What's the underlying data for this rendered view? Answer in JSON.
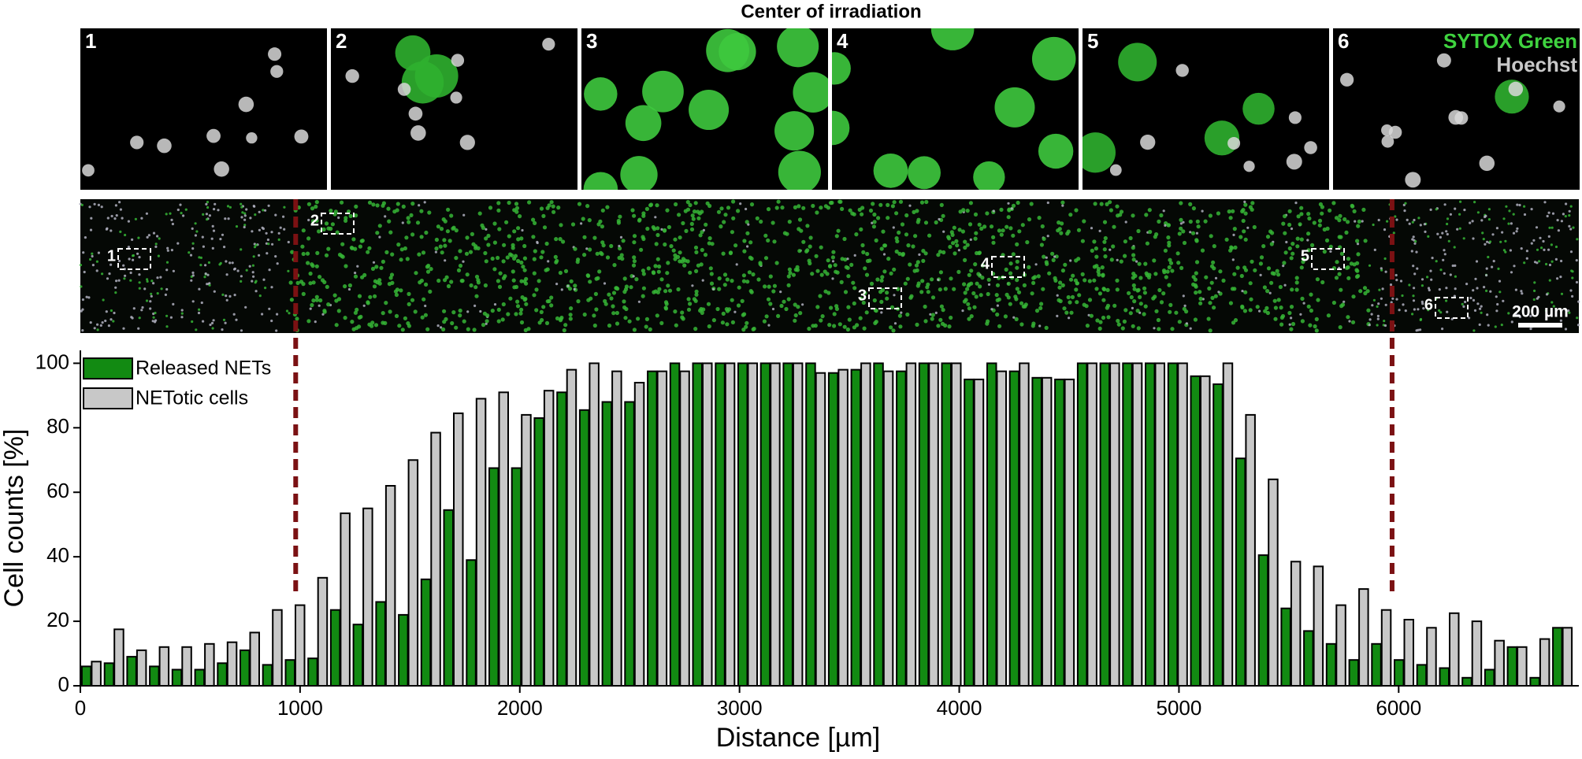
{
  "header": {
    "title": "Center of irradiation"
  },
  "panels": {
    "labels": [
      "1",
      "2",
      "3",
      "4",
      "5",
      "6"
    ],
    "stain_green": "SYTOX Green",
    "stain_gray": "Hoechst"
  },
  "overview": {
    "box_labels": [
      "1",
      "2",
      "3",
      "4",
      "5",
      "6"
    ],
    "scale_bar": "200 µm"
  },
  "chart_data": {
    "type": "bar",
    "x_label": "Distance [µm]",
    "y_label": "Cell counts [%]",
    "x": [
      50,
      153,
      256,
      359,
      462,
      565,
      668,
      771,
      874,
      977,
      1080,
      1183,
      1286,
      1389,
      1492,
      1595,
      1698,
      1801,
      1904,
      2007,
      2110,
      2213,
      2316,
      2419,
      2522,
      2625,
      2728,
      2831,
      2934,
      3037,
      3140,
      3243,
      3346,
      3449,
      3552,
      3655,
      3758,
      3861,
      3964,
      4067,
      4170,
      4273,
      4376,
      4479,
      4582,
      4685,
      4788,
      4891,
      4994,
      5097,
      5200,
      5303,
      5406,
      5509,
      5612,
      5715,
      5818,
      5921,
      6024,
      6127,
      6230,
      6333,
      6436,
      6539,
      6642,
      6745
    ],
    "series": [
      {
        "name": "Released NETs",
        "color": "#128a12",
        "values": [
          6,
          7,
          9,
          6,
          5,
          5,
          7,
          11,
          6.5,
          8,
          8.5,
          23.5,
          19,
          26,
          22,
          33,
          54.5,
          39,
          67.5,
          67.5,
          83,
          91,
          85.5,
          88,
          88,
          97.5,
          100,
          100,
          100,
          100,
          100,
          100,
          100,
          97,
          98,
          100,
          97.5,
          100,
          100,
          95,
          100,
          97.5,
          95.5,
          95,
          100,
          100,
          100,
          100,
          100,
          96,
          93.5,
          70.5,
          40.5,
          24,
          17,
          13,
          8,
          13,
          8,
          6.5,
          5.5,
          2.5,
          5,
          12,
          2.5,
          18
        ]
      },
      {
        "name": "NETotic cells",
        "color": "#c8c8c8",
        "values": [
          7.5,
          17.5,
          11,
          12,
          12,
          13,
          13.5,
          16.5,
          23.5,
          25,
          33.5,
          53.5,
          55,
          62,
          70,
          78.5,
          84.5,
          89,
          91,
          84,
          91.5,
          98,
          100,
          97.5,
          94,
          97.5,
          97.5,
          100,
          100,
          100,
          100,
          100,
          97,
          98,
          100,
          97.5,
          100,
          100,
          100,
          95,
          97.5,
          100,
          95.5,
          95,
          100,
          100,
          100,
          100,
          100,
          96,
          100,
          84,
          64,
          38.5,
          37,
          25,
          30,
          23.5,
          20.5,
          18,
          22.5,
          20,
          14,
          12,
          14.5,
          18
        ]
      }
    ],
    "xlim": [
      0,
      6820
    ],
    "ylim": [
      0,
      104
    ],
    "xticks": [
      0,
      1000,
      2000,
      3000,
      4000,
      5000,
      6000
    ],
    "yticks": [
      0,
      20,
      40,
      60,
      80,
      100
    ],
    "reference_lines": [
      980,
      5970
    ],
    "reference_color": "#7b1113",
    "legend": "upper left"
  }
}
